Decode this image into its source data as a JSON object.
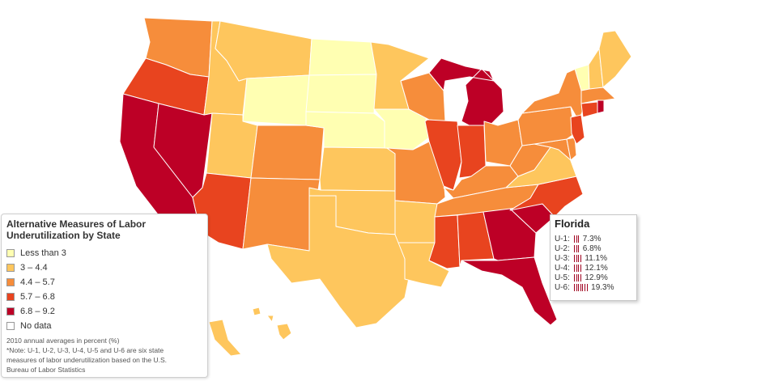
{
  "colors": {
    "bin1": "#ffffb2",
    "bin2": "#fec65d",
    "bin3": "#f68d3b",
    "bin4": "#e8441f",
    "bin5": "#bd0026",
    "nodata": "#ffffff",
    "border": "#ffffff",
    "tooltip_bar": "#a00020"
  },
  "legend": {
    "title_line1": "Alternative Measures of Labor",
    "title_line2": "Underutilization by State",
    "items": [
      {
        "label": "Less than 3",
        "color": "#ffffb2"
      },
      {
        "label": "3 – 4.4",
        "color": "#fec65d"
      },
      {
        "label": "4.4 – 5.7",
        "color": "#f68d3b"
      },
      {
        "label": "5.7 – 6.8",
        "color": "#e8441f"
      },
      {
        "label": "6.8 – 9.2",
        "color": "#bd0026"
      },
      {
        "label": "No data",
        "color": "#ffffff"
      }
    ],
    "note_lines": [
      "2010 annual averages in percent (%)",
      "*Note: U-1, U-2, U-3, U-4, U-5 and U-6 are six state",
      "measures of labor underutilization based on the U.S.",
      "Bureau of Labor Statistics"
    ]
  },
  "tooltip": {
    "state": "Florida",
    "rows": [
      {
        "label": "U-1:",
        "value": "7.3%",
        "bars": 3
      },
      {
        "label": "U-2:",
        "value": "6.8%",
        "bars": 3
      },
      {
        "label": "U-3:",
        "value": "11.1%",
        "bars": 4
      },
      {
        "label": "U-4:",
        "value": "12.1%",
        "bars": 4
      },
      {
        "label": "U-5:",
        "value": "12.9%",
        "bars": 4
      },
      {
        "label": "U-6:",
        "value": "19.3%",
        "bars": 7
      }
    ]
  },
  "state_bins": {
    "WA": 3,
    "OR": 4,
    "CA": 5,
    "NV": 5,
    "ID": 2,
    "MT": 2,
    "WY": 1,
    "UT": 2,
    "AZ": 4,
    "CO": 3,
    "NM": 3,
    "ND": 1,
    "SD": 1,
    "NE": 1,
    "KS": 2,
    "OK": 2,
    "TX": 2,
    "MN": 2,
    "IA": 1,
    "MO": 3,
    "AR": 2,
    "LA": 2,
    "WI": 3,
    "IL": 4,
    "MI": 5,
    "IN": 4,
    "OH": 3,
    "KY": 3,
    "TN": 3,
    "MS": 4,
    "AL": 4,
    "GA": 5,
    "FL": 5,
    "SC": 5,
    "NC": 4,
    "VA": 2,
    "WV": 3,
    "MD": 3,
    "DE": 3,
    "PA": 3,
    "NY": 3,
    "NJ": 4,
    "CT": 4,
    "RI": 5,
    "MA": 3,
    "VT": 1,
    "NH": 2,
    "ME": 2,
    "AK": 2,
    "HI": 2
  }
}
